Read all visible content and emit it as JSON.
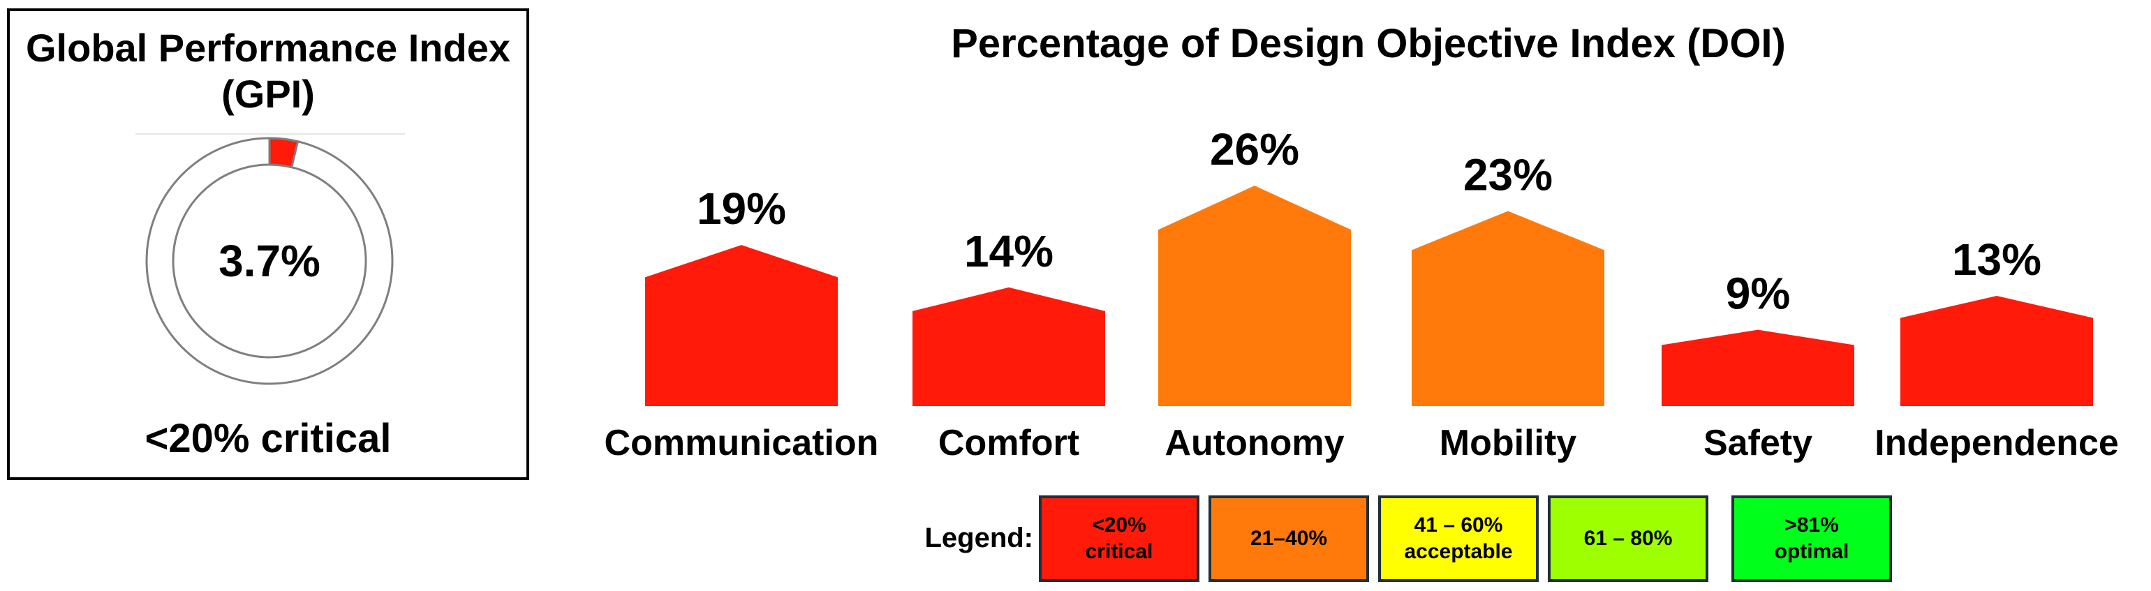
{
  "gpi": {
    "title": "Global Performance Index (GPI)",
    "value": 3.7,
    "value_text": "3.7%",
    "status_text": "<20% critical",
    "color": "#ff1a0a"
  },
  "chart_data": {
    "type": "bar",
    "title": "Percentage of Design Objective Index (DOI)",
    "categories": [
      "Communication",
      "Comfort",
      "Autonomy",
      "Mobility",
      "Safety",
      "Independence"
    ],
    "values": [
      19,
      14,
      26,
      23,
      9,
      13
    ],
    "value_labels": [
      "19%",
      "14%",
      "26%",
      "23%",
      "9%",
      "13%"
    ],
    "colors": [
      "#ff1a0a",
      "#ff1a0a",
      "#ff7a0a",
      "#ff7a0a",
      "#ff1a0a",
      "#ff1a0a"
    ]
  },
  "legend": {
    "label": "Legend:",
    "items": [
      {
        "text": "<20%\ncritical",
        "color": "#ff1a0a"
      },
      {
        "text": "21–40%",
        "color": "#ff7a0a"
      },
      {
        "text": "41 – 60%\nacceptable",
        "color": "#ffff00"
      },
      {
        "text": "61 – 80%",
        "color": "#9dff00"
      },
      {
        "text": ">81%\noptimal",
        "color": "#00ff1a"
      }
    ]
  }
}
